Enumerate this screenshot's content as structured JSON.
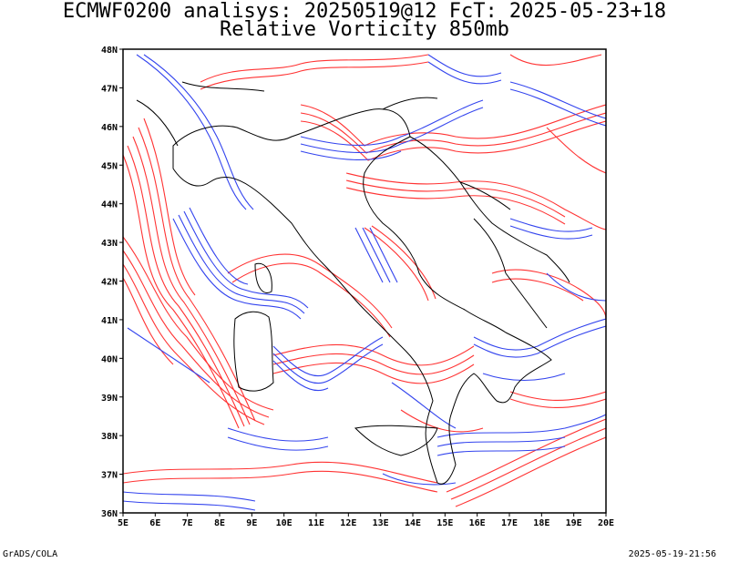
{
  "header": {
    "line1": "ECMWF0200 analisys: 20250519@12 FcT: 2025-05-23+18",
    "line2": "Relative Vorticity 850mb"
  },
  "footer": {
    "left": "GrADS/COLA",
    "right": "2025-05-19-21:56"
  },
  "map": {
    "lat_labels": [
      "48N",
      "47N",
      "46N",
      "45N",
      "44N",
      "43N",
      "42N",
      "41N",
      "40N",
      "39N",
      "38N",
      "37N",
      "36N"
    ],
    "lon_labels": [
      "5E",
      "6E",
      "7E",
      "8E",
      "9E",
      "10E",
      "11E",
      "12E",
      "13E",
      "14E",
      "15E",
      "16E",
      "17E",
      "18E",
      "19E",
      "20E"
    ],
    "lat_range": [
      36,
      48
    ],
    "lon_range": [
      5,
      20
    ],
    "colors": {
      "positive_contour": "#ff3333",
      "negative_contour": "#3344ee",
      "coastline": "#000000",
      "frame": "#000000"
    }
  }
}
